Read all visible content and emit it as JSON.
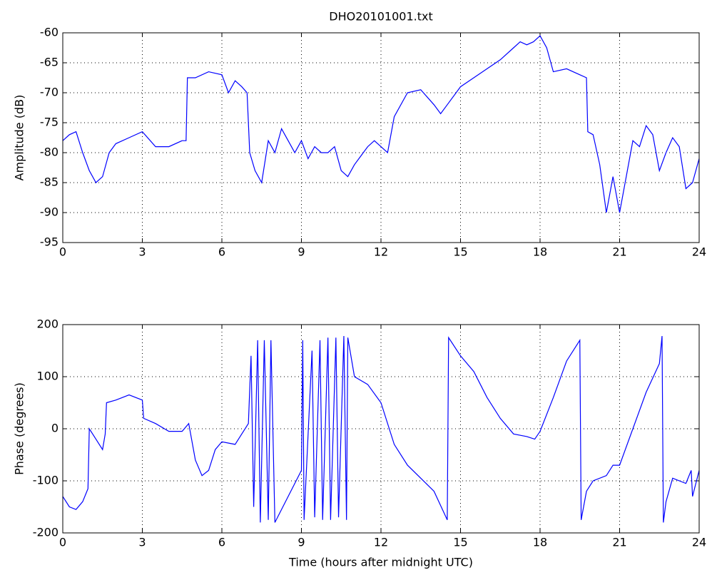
{
  "chart_data": [
    {
      "type": "line",
      "title": "DHO20101001.txt",
      "y_label": "Amplitude (dB)",
      "xlim": [
        0,
        24
      ],
      "xticks": [
        0,
        3,
        6,
        9,
        12,
        15,
        18,
        21,
        24
      ],
      "ylim": [
        -95,
        -60
      ],
      "yticks": [
        -95,
        -90,
        -85,
        -80,
        -75,
        -70,
        -65,
        -60
      ],
      "grid": true,
      "series": [
        {
          "color": "#0000ff",
          "x": [
            0,
            0.25,
            0.5,
            0.75,
            1,
            1.25,
            1.5,
            1.75,
            2,
            2.5,
            3,
            3.5,
            4,
            4.5,
            4.65,
            4.7,
            5,
            5.5,
            6,
            6.25,
            6.5,
            6.75,
            6.95,
            7.05,
            7.25,
            7.5,
            7.75,
            8,
            8.25,
            8.5,
            8.75,
            9,
            9.25,
            9.5,
            9.75,
            10,
            10.25,
            10.5,
            10.75,
            11,
            11.5,
            11.75,
            12,
            12.25,
            12.5,
            13,
            13.5,
            14,
            14.25,
            14.5,
            15,
            15.5,
            16,
            16.5,
            17,
            17.25,
            17.5,
            17.75,
            18,
            18.25,
            18.5,
            19,
            19.5,
            19.75,
            19.8,
            20,
            20.25,
            20.5,
            20.75,
            21,
            21.25,
            21.5,
            21.75,
            22,
            22.25,
            22.5,
            22.75,
            23,
            23.25,
            23.5,
            23.75,
            24
          ],
          "values": [
            -78,
            -77,
            -76.5,
            -80,
            -83,
            -85,
            -84,
            -80,
            -78.5,
            -77.5,
            -76.5,
            -79,
            -79,
            -78,
            -78,
            -67.5,
            -67.5,
            -66.5,
            -67,
            -70,
            -68,
            -69,
            -70,
            -80,
            -83,
            -85,
            -78,
            -80,
            -76,
            -78,
            -80,
            -78,
            -81,
            -79,
            -80,
            -80,
            -79,
            -83,
            -84,
            -82,
            -79,
            -78,
            -79,
            -80,
            -74,
            -70,
            -69.5,
            -72,
            -73.5,
            -72,
            -69,
            -67.5,
            -66,
            -64.5,
            -62.5,
            -61.5,
            -62,
            -61.5,
            -60.5,
            -62.5,
            -66.5,
            -66,
            -67,
            -67.5,
            -76.5,
            -77,
            -82,
            -90,
            -84,
            -90,
            -84,
            -78,
            -79,
            -75.5,
            -77,
            -83,
            -80,
            -77.5,
            -79,
            -86,
            -85,
            -81
          ]
        }
      ]
    },
    {
      "type": "line",
      "x_label": "Time (hours after midnight UTC)",
      "y_label": "Phase (degrees)",
      "xlim": [
        0,
        24
      ],
      "xticks": [
        0,
        3,
        6,
        9,
        12,
        15,
        18,
        21,
        24
      ],
      "ylim": [
        -200,
        200
      ],
      "yticks": [
        -200,
        -100,
        0,
        100,
        200
      ],
      "grid": true,
      "series": [
        {
          "color": "#0000ff",
          "x": [
            0,
            0.25,
            0.5,
            0.75,
            0.95,
            1.0,
            1.25,
            1.5,
            1.6,
            1.65,
            2,
            2.5,
            3,
            3.05,
            3.5,
            4,
            4.5,
            4.75,
            5,
            5.25,
            5.5,
            5.75,
            6,
            6.5,
            7,
            7.1,
            7.2,
            7.35,
            7.45,
            7.6,
            7.75,
            7.85,
            8.0,
            8.5,
            9,
            9.05,
            9.1,
            9.4,
            9.5,
            9.7,
            9.8,
            10,
            10.1,
            10.3,
            10.4,
            10.6,
            10.7,
            10.75,
            11,
            11.5,
            12,
            12.5,
            13,
            13.5,
            14,
            14.5,
            14.55,
            15,
            15.5,
            16,
            16.5,
            17,
            17.5,
            17.8,
            18,
            18.5,
            19,
            19.5,
            19.55,
            19.75,
            20,
            20.5,
            20.75,
            21,
            21.5,
            22,
            22.5,
            22.6,
            22.65,
            22.75,
            23,
            23.5,
            23.7,
            23.75,
            24
          ],
          "values": [
            -130,
            -150,
            -155,
            -140,
            -115,
            0,
            -20,
            -40,
            -10,
            50,
            55,
            65,
            55,
            20,
            10,
            -5,
            -5,
            10,
            -60,
            -90,
            -80,
            -40,
            -25,
            -30,
            10,
            140,
            -150,
            170,
            -180,
            170,
            -175,
            170,
            -180,
            -130,
            -80,
            170,
            -175,
            150,
            -170,
            170,
            -175,
            175,
            -175,
            175,
            -170,
            178,
            -175,
            175,
            100,
            85,
            50,
            -30,
            -70,
            -95,
            -120,
            -175,
            175,
            140,
            110,
            60,
            20,
            -10,
            -15,
            -20,
            -5,
            60,
            130,
            170,
            -175,
            -120,
            -100,
            -90,
            -70,
            -70,
            0,
            70,
            125,
            178,
            -180,
            -140,
            -95,
            -105,
            -80,
            -130,
            -80
          ]
        }
      ]
    }
  ]
}
